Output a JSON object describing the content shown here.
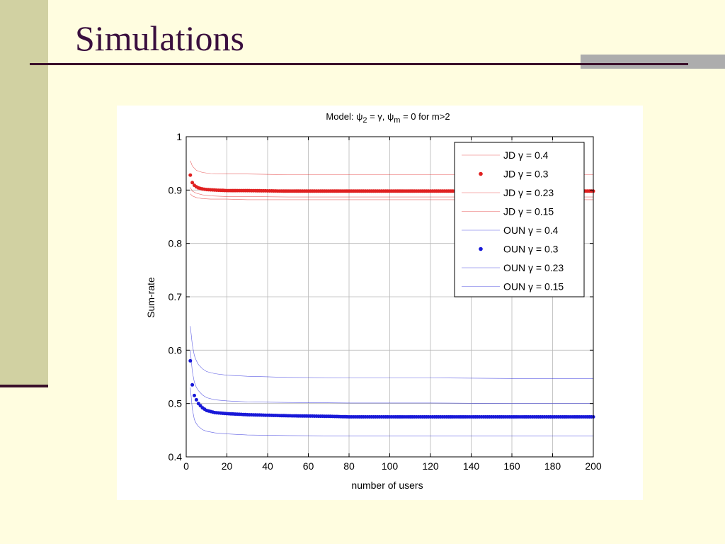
{
  "slide": {
    "title": "Simulations"
  },
  "colors": {
    "background": "#FFFDE0",
    "sidebar": "#D1D1A2",
    "title": "#3A0F3E",
    "rule": "#3A0F2A",
    "jd": "#E02020",
    "oun": "#1818D8"
  },
  "chart_data": {
    "type": "line",
    "title": "Model: ψ2 = γ, ψm = 0 for m>2",
    "title_parts": {
      "prefix": "Model: ",
      "psi": "ψ",
      "sub1": "2",
      "mid": " = γ, ",
      "sub2": "m",
      "suffix": " = 0 for m>2"
    },
    "xlabel": "number of users",
    "ylabel": "Sum-rate",
    "xlim": [
      0,
      200
    ],
    "ylim": [
      0.4,
      1.0
    ],
    "xticks": [
      0,
      20,
      40,
      60,
      80,
      100,
      120,
      140,
      160,
      180,
      200
    ],
    "yticks": [
      0.4,
      0.5,
      0.6,
      0.7,
      0.8,
      0.9,
      1
    ],
    "grid": true,
    "legend_position": "top-right",
    "series": [
      {
        "name": "JD γ = 0.4",
        "style": "thin",
        "color": "#E02020",
        "x": [
          2,
          3,
          5,
          8,
          12,
          20,
          30,
          50,
          80,
          120,
          200
        ],
        "values": [
          0.955,
          0.945,
          0.937,
          0.933,
          0.931,
          0.93,
          0.93,
          0.929,
          0.929,
          0.929,
          0.929
        ]
      },
      {
        "name": "JD γ = 0.3",
        "style": "dots",
        "color": "#E02020",
        "x": [
          2,
          3,
          4,
          5,
          6,
          8,
          10,
          14,
          20,
          30,
          50,
          80,
          120,
          160,
          200
        ],
        "values": [
          0.928,
          0.914,
          0.909,
          0.906,
          0.904,
          0.902,
          0.901,
          0.9,
          0.899,
          0.899,
          0.898,
          0.898,
          0.898,
          0.898,
          0.898
        ]
      },
      {
        "name": "JD γ = 0.23",
        "style": "thin",
        "color": "#E02020",
        "x": [
          2,
          3,
          5,
          8,
          12,
          20,
          30,
          50,
          80,
          120,
          200
        ],
        "values": [
          0.905,
          0.898,
          0.894,
          0.891,
          0.889,
          0.888,
          0.888,
          0.887,
          0.887,
          0.887,
          0.887
        ]
      },
      {
        "name": "JD γ = 0.15",
        "style": "thin",
        "color": "#E02020",
        "x": [
          2,
          3,
          5,
          8,
          12,
          20,
          30,
          50,
          80,
          120,
          200
        ],
        "values": [
          0.893,
          0.889,
          0.886,
          0.884,
          0.883,
          0.883,
          0.882,
          0.882,
          0.882,
          0.882,
          0.882
        ]
      },
      {
        "name": "OUN γ = 0.4",
        "style": "thin",
        "color": "#1818D8",
        "x": [
          2,
          3,
          4,
          5,
          6,
          8,
          10,
          14,
          20,
          30,
          50,
          80,
          120,
          160,
          200
        ],
        "values": [
          0.645,
          0.61,
          0.59,
          0.58,
          0.573,
          0.565,
          0.56,
          0.556,
          0.553,
          0.551,
          0.549,
          0.548,
          0.548,
          0.547,
          0.547
        ]
      },
      {
        "name": "OUN γ = 0.3",
        "style": "dots",
        "color": "#1818D8",
        "x": [
          2,
          3,
          4,
          5,
          6,
          8,
          10,
          14,
          20,
          30,
          40,
          50,
          70,
          80,
          120,
          160,
          200
        ],
        "values": [
          0.58,
          0.535,
          0.515,
          0.507,
          0.5,
          0.492,
          0.487,
          0.483,
          0.481,
          0.479,
          0.478,
          0.477,
          0.476,
          0.475,
          0.475,
          0.475,
          0.475
        ]
      },
      {
        "name": "OUN γ = 0.23",
        "style": "thin",
        "color": "#1818D8",
        "x": [
          2,
          3,
          4,
          5,
          6,
          8,
          10,
          14,
          20,
          30,
          50,
          80,
          120,
          160,
          200
        ],
        "values": [
          0.6,
          0.56,
          0.54,
          0.53,
          0.524,
          0.516,
          0.511,
          0.507,
          0.505,
          0.503,
          0.502,
          0.501,
          0.501,
          0.5,
          0.5
        ]
      },
      {
        "name": "OUN γ = 0.15",
        "style": "thin",
        "color": "#1818D8",
        "x": [
          2,
          3,
          4,
          5,
          6,
          8,
          10,
          14,
          20,
          30,
          50,
          80,
          120,
          160,
          200
        ],
        "values": [
          0.53,
          0.49,
          0.47,
          0.462,
          0.457,
          0.451,
          0.448,
          0.445,
          0.443,
          0.441,
          0.44,
          0.439,
          0.439,
          0.439,
          0.439
        ]
      }
    ]
  }
}
